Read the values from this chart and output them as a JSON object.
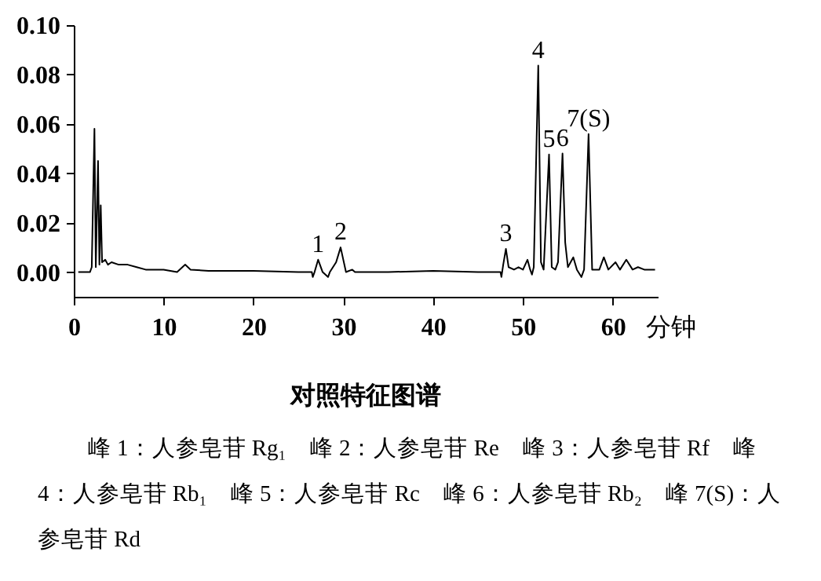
{
  "chart_data": {
    "type": "line",
    "title": "对照特征图谱",
    "xlabel": "分钟",
    "color": "#000000",
    "x": [
      0.5,
      1.8,
      2.0,
      2.3,
      2.45,
      2.7,
      2.85,
      3.0,
      3.15,
      3.5,
      3.8,
      4.2,
      5,
      6,
      7,
      8,
      10,
      11.5,
      12.4,
      13,
      15,
      20,
      25,
      26.5,
      26.6,
      26.8,
      27.2,
      27.7,
      28.3,
      28.5,
      29.2,
      29.7,
      30.3,
      31,
      31.3,
      35,
      40,
      45,
      47.5,
      47.6,
      47.8,
      48.1,
      48.4,
      49,
      49.5,
      50,
      50.5,
      50.8,
      51.0,
      51.2,
      51.7,
      52.0,
      52.3,
      52.9,
      53.2,
      53.6,
      53.9,
      54.4,
      54.7,
      55.0,
      55.6,
      56.0,
      56.5,
      56.8,
      57.3,
      57.7,
      58.5,
      59.0,
      59.5,
      60.3,
      60.8,
      61.5,
      62.2,
      62.8,
      63.5,
      64.7
    ],
    "values": [
      0,
      0,
      0.002,
      0.058,
      0.002,
      0.045,
      0.003,
      0.027,
      0.004,
      0.005,
      0.003,
      0.004,
      0.003,
      0.003,
      0.002,
      0.001,
      0.001,
      0,
      0.003,
      0.001,
      0.0005,
      0.0005,
      0,
      0,
      -0.002,
      0,
      0.005,
      0,
      -0.002,
      0,
      0.004,
      0.01,
      0,
      0.001,
      0,
      0,
      0.0005,
      0,
      0,
      -0.002,
      0.003,
      0.0094,
      0.002,
      0.001,
      0.002,
      0.001,
      0.005,
      0.001,
      -0.001,
      0.002,
      0.0836,
      0.004,
      0.001,
      0.0476,
      0.002,
      0.001,
      0.004,
      0.048,
      0.012,
      0.002,
      0.006,
      0.001,
      -0.002,
      0.001,
      0.0559,
      0.001,
      0.001,
      0.006,
      0.001,
      0.004,
      0.001,
      0.005,
      0.001,
      0.002,
      0.001,
      0.001
    ],
    "xlim": [
      0,
      65
    ],
    "xticks": [
      0,
      10,
      20,
      30,
      40,
      50,
      60
    ],
    "ylim": [
      -0.01,
      0.1
    ],
    "yticks": [
      {
        "value": 0,
        "label": "0.00"
      },
      {
        "value": 0.02,
        "label": "0.02"
      },
      {
        "value": 0.04,
        "label": "0.04"
      },
      {
        "value": 0.06,
        "label": "0.06"
      },
      {
        "value": 0.08,
        "label": "0.08"
      },
      {
        "value": 0.1,
        "label": "0.10"
      }
    ],
    "annotations": [
      {
        "text": "1",
        "x": 27.2,
        "y": 0.005
      },
      {
        "text": "2",
        "x": 29.7,
        "y": 0.01
      },
      {
        "text": "3",
        "x": 48.1,
        "y": 0.0094
      },
      {
        "text": "4",
        "x": 51.7,
        "y": 0.0836
      },
      {
        "text": "5",
        "x": 52.9,
        "y": 0.0476
      },
      {
        "text": "6",
        "x": 54.4,
        "y": 0.048
      },
      {
        "text": "7(S)",
        "x": 57.3,
        "y": 0.0559
      },
      "峰 1：人参皂苷 Rg₁　峰 2：人参皂苷 Re　峰 3：人参皂苷 Rf　峰 4：人参皂苷 Rb₁　峰 5：人参皂苷 Rc　峰 6：人参皂苷 Rb₂　峰 7(S)：人参皂苷 Rd"
    ]
  }
}
